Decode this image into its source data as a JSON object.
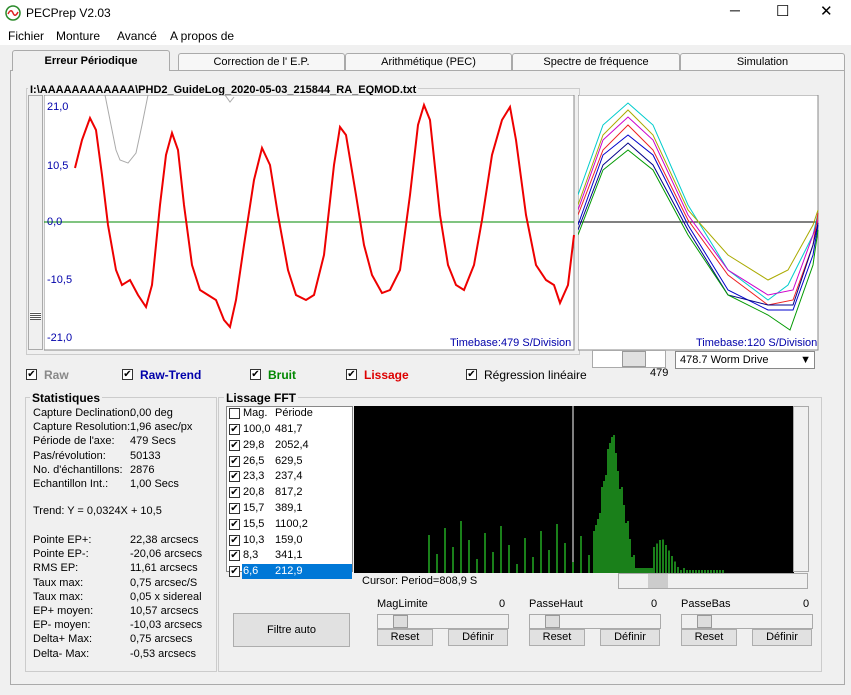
{
  "window": {
    "title": "PECPrep V2.03"
  },
  "menu": [
    "Fichier",
    "Monture",
    "Avancé",
    "A propos de"
  ],
  "tabs": [
    "Erreur Périodique",
    "Correction de l' E.P.",
    "Arithmétique (PEC)",
    "Spectre de fréquence",
    "Simulation"
  ],
  "file_path": "I:\\AAAAAAAAAAAA\\PHD2_GuideLog_2020-05-03_215844_RA_EQMOD.txt",
  "main_plot": {
    "yticks": [
      "21,0",
      "10,5",
      "0,0",
      "-10,5",
      "-21,0"
    ],
    "timebase": "Timebase:479 S/Division"
  },
  "side_plot": {
    "timebase": "Timebase:120 S/Division",
    "scroll_value": "479",
    "dropdown": "478.7 Worm Drive"
  },
  "checkboxes": [
    {
      "label": "Raw",
      "checked": true
    },
    {
      "label": "Raw-Trend",
      "checked": true
    },
    {
      "label": "Bruit",
      "checked": true
    },
    {
      "label": "Lissage",
      "checked": true
    },
    {
      "label": "Régression linéaire",
      "checked": true
    }
  ],
  "statistics": {
    "title": "Statistiques",
    "rows": [
      [
        "Capture Declination:",
        "0,00 deg"
      ],
      [
        "Capture Resolution:",
        "1,96 asec/px"
      ],
      [
        "Période de l'axe:",
        "479 Secs"
      ],
      [
        "Pas/révolution:",
        "50133"
      ],
      [
        "No. d'échantillons:",
        "2876"
      ],
      [
        "Echantillon Int.:",
        "1,00 Secs"
      ]
    ],
    "trend": "Trend: Y = 0,0324X + 10,5",
    "rows2": [
      [
        "Pointe EP+:",
        "22,38 arcsecs"
      ],
      [
        "Pointe EP-:",
        "-20,06 arcsecs"
      ],
      [
        "RMS EP:",
        "11,61 arcsecs"
      ],
      [
        "Taux max:",
        "0,75 arcsec/S"
      ],
      [
        "Taux max:",
        "0,05 x sidereal"
      ],
      [
        "EP+ moyen:",
        "10,57 arcsecs"
      ],
      [
        "EP- moyen:",
        "-10,03 arcsecs"
      ],
      [
        "Delta+ Max:",
        "0,75 arcsecs"
      ],
      [
        "Delta- Max:",
        "-0,53 arcsecs"
      ]
    ]
  },
  "fft": {
    "title": "Lissage FFT",
    "columns": [
      "Mag.",
      "Période"
    ],
    "rows": [
      [
        "100,0",
        "481,7"
      ],
      [
        "29,8",
        "2052,4"
      ],
      [
        "26,5",
        "629,5"
      ],
      [
        "23,3",
        "237,4"
      ],
      [
        "20,8",
        "817,2"
      ],
      [
        "15,7",
        "389,1"
      ],
      [
        "15,5",
        "1100,2"
      ],
      [
        "10,3",
        "159,0"
      ],
      [
        "8,3",
        "341,1"
      ],
      [
        "6,6",
        "212,9"
      ]
    ],
    "cursor": "Cursor: Period=808,9 S"
  },
  "filter_button": "Filtre auto",
  "filters": [
    {
      "label": "MagLimite",
      "value": "0"
    },
    {
      "label": "PasseHaut",
      "value": "0"
    },
    {
      "label": "PasseBas",
      "value": "0"
    }
  ],
  "reset": "Reset",
  "define": "Définir"
}
